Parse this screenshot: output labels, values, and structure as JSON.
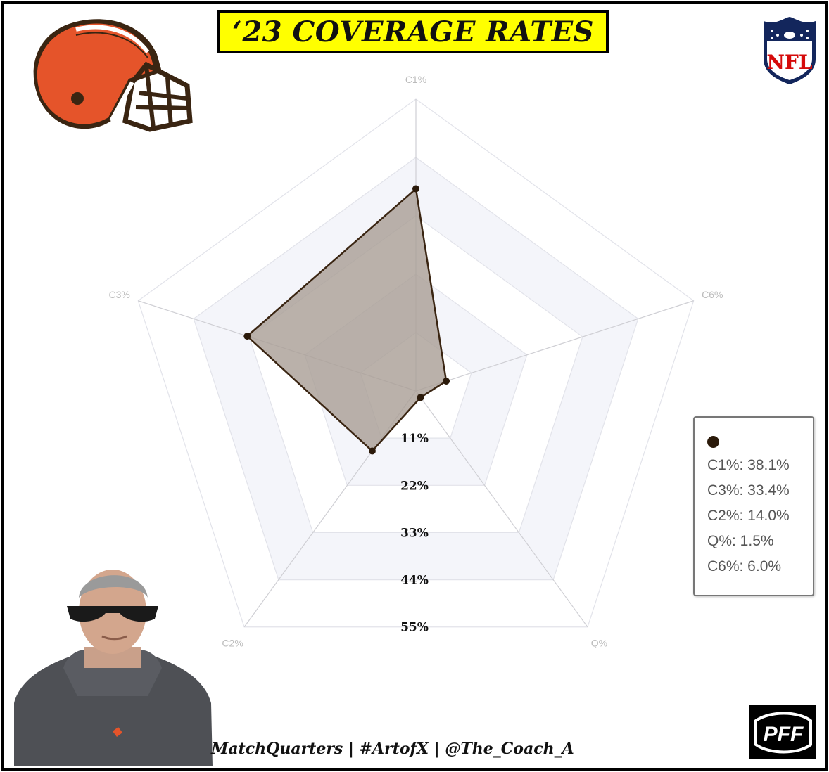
{
  "title": "‘23 COVERAGE RATES",
  "credit": "MatchQuarters | #ArtofX | @The_Coach_A",
  "logos": {
    "pff_text": "PFF",
    "nfl_text": "NFL"
  },
  "colors": {
    "title_background": "#ffff00",
    "series_stroke": "#3a2512",
    "series_fill": "#a99e95",
    "ring_band": "#f4f5fa",
    "helmet_orange": "#e5542a",
    "helmet_brown": "#3a2512"
  },
  "chart_data": {
    "type": "radar",
    "axes": [
      "C1%",
      "C6%",
      "Q%",
      "C2%",
      "C3%"
    ],
    "ring_labels": [
      "11%",
      "22%",
      "33%",
      "44%",
      "55%"
    ],
    "rlim": [
      0,
      55
    ],
    "grid": true,
    "legend_position": "right",
    "series": [
      {
        "values": [
          38.1,
          6.0,
          1.5,
          14.0,
          33.4
        ]
      }
    ],
    "legend_entries": [
      "C1%: 38.1%",
      "C3%: 33.4%",
      "C2%: 14.0%",
      "Q%: 1.5%",
      "C6%: 6.0%"
    ]
  }
}
